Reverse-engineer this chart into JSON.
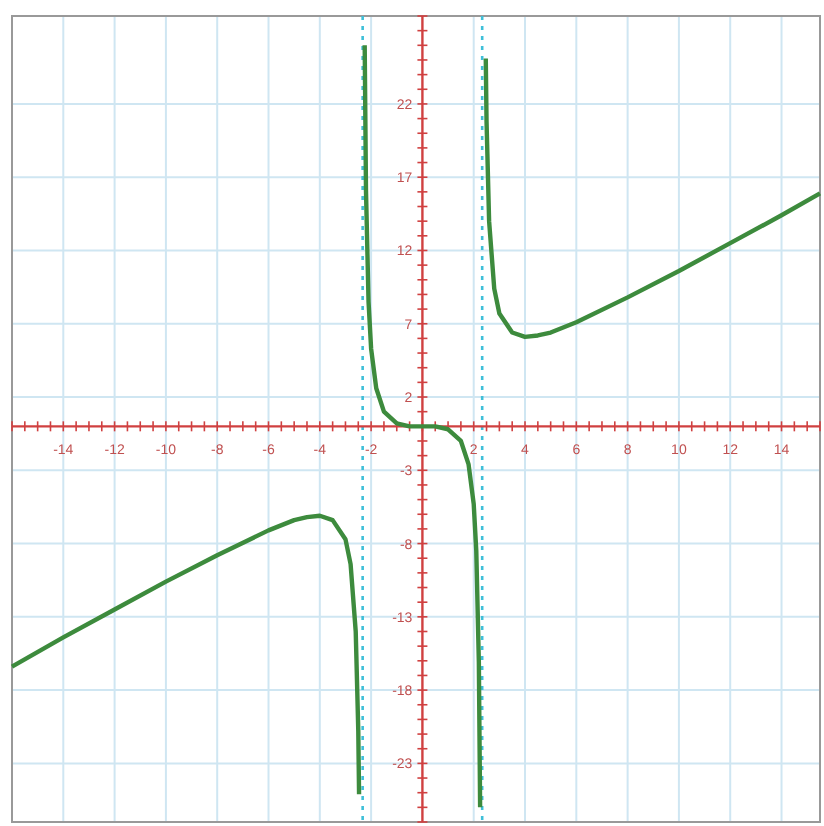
{
  "chart_data": {
    "type": "line",
    "xlim": [
      -16,
      15.5
    ],
    "ylim": [
      -27,
      28
    ],
    "xticks": [
      -14,
      -12,
      -10,
      -8,
      -6,
      -4,
      -2,
      2,
      4,
      6,
      8,
      10,
      12,
      14
    ],
    "yticks": [
      22,
      17,
      12,
      7,
      2,
      -3,
      -8,
      -13,
      -18,
      -23
    ],
    "grid": true,
    "line_style": "solid",
    "marker": "none",
    "series": [
      {
        "color": "#3d8b3d",
        "x": [
          -16,
          -14,
          -12,
          -10,
          -8,
          -6,
          -5,
          -4.5,
          -4,
          -3.5,
          -3,
          -2.8,
          -2.6,
          -2.5,
          -2.47
        ],
        "values": [
          -16.4,
          -14.4,
          -12.5,
          -10.6,
          -8.8,
          -7.1,
          -6.4,
          -6.2,
          -6.1,
          -6.4,
          -7.7,
          -9.4,
          -14,
          -20.8,
          -25.1
        ]
      },
      {
        "color": "#3d8b3d",
        "x": [
          -2.25,
          -2.2,
          -2.1,
          -2,
          -1.8,
          -1.5,
          -1,
          -0.5,
          0,
          0.5,
          1,
          1.5,
          1.8,
          2,
          2.1,
          2.2,
          2.25
        ],
        "values": [
          26,
          16.1,
          8.5,
          5.3,
          2.6,
          1,
          0.2,
          0,
          0,
          0,
          -0.2,
          -1,
          -2.6,
          -5.3,
          -8.5,
          -16.1,
          -26
        ]
      },
      {
        "color": "#3d8b3d",
        "x": [
          2.47,
          2.5,
          2.6,
          2.8,
          3,
          3.5,
          4,
          4.5,
          5,
          6,
          8,
          10,
          12,
          14,
          15.5
        ],
        "values": [
          25.1,
          20.8,
          14,
          9.4,
          7.7,
          6.4,
          6.1,
          6.2,
          6.4,
          7.1,
          8.8,
          10.6,
          12.5,
          14.4,
          15.9
        ]
      }
    ],
    "ref_lines": [
      {
        "axis": "x",
        "value": -2.33,
        "color": "#3fbfd8",
        "line_style": "dotted"
      },
      {
        "axis": "x",
        "value": 2.33,
        "color": "#3fbfd8",
        "line_style": "dotted"
      }
    ]
  }
}
